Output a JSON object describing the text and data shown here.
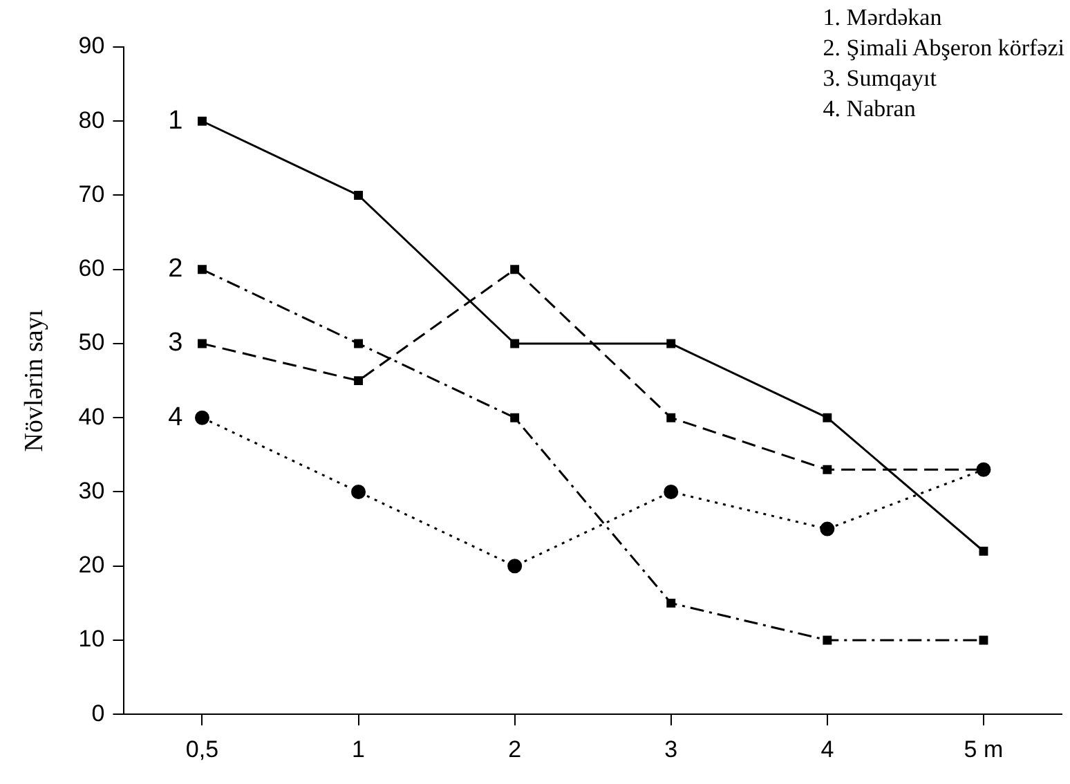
{
  "chart_data": {
    "type": "line",
    "ylabel": "Növlərin sayı",
    "categories": [
      "0,5",
      "1",
      "2",
      "3",
      "4",
      "5 m"
    ],
    "series": [
      {
        "color": "#000000",
        "values": [
          80,
          70,
          50,
          50,
          40,
          22
        ],
        "line_style": "solid",
        "marker": "square"
      },
      {
        "color": "#000000",
        "values": [
          60,
          50,
          40,
          15,
          10,
          10
        ],
        "line_style": "dashdot",
        "marker": "square"
      },
      {
        "color": "#000000",
        "values": [
          50,
          45,
          60,
          40,
          33,
          33
        ],
        "line_style": "dashed",
        "marker": "square"
      },
      {
        "color": "#000000",
        "values": [
          40,
          30,
          20,
          30,
          25,
          33
        ],
        "line_style": "dotted",
        "marker": "circle"
      }
    ],
    "annotations": [
      "1. Mərdəkan",
      "2. Şimali Abşeron körfəzi",
      "3. Sumqayıt",
      "4. Nabran",
      {
        "text": "1",
        "x": "0,5",
        "y": 80
      },
      {
        "text": "2",
        "x": "0,5",
        "y": 60
      },
      {
        "text": "3",
        "x": "0,5",
        "y": 50
      },
      {
        "text": "4",
        "x": "0,5",
        "y": 40
      }
    ],
    "ylim": [
      0,
      90
    ],
    "yticks": [
      0,
      10,
      20,
      30,
      40,
      50,
      60,
      70,
      80,
      90
    ],
    "grid": false
  }
}
